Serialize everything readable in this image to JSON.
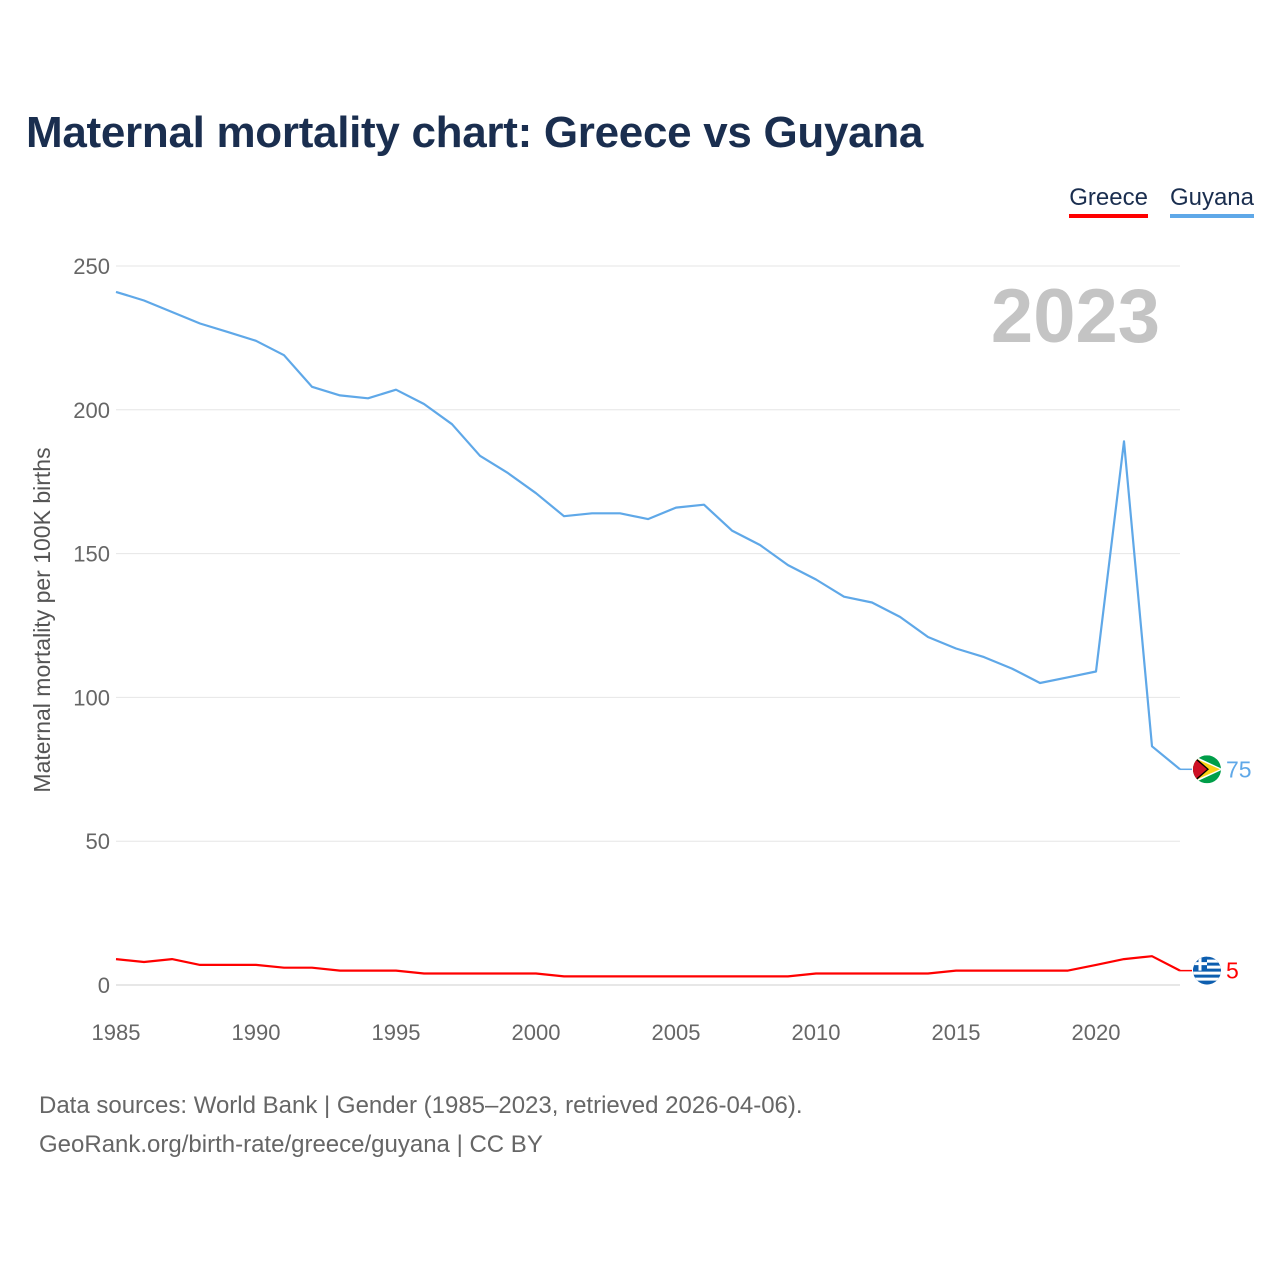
{
  "title": "Maternal mortality chart: Greece vs Guyana",
  "legend": [
    {
      "name": "Greece",
      "color": "#ff0000"
    },
    {
      "name": "Guyana",
      "color": "#5fa8e8"
    }
  ],
  "year_watermark": "2023",
  "footer": {
    "line1": "Data sources: World Bank | Gender (1985–2023, retrieved 2026-04-06).",
    "line2": "GeoRank.org/birth-rate/greece/guyana | CC BY"
  },
  "chart_data": {
    "type": "line",
    "title": "Maternal mortality chart: Greece vs Guyana",
    "xlabel": "",
    "ylabel": "Maternal mortality per 100K births",
    "xlim": [
      1985,
      2023
    ],
    "ylim": [
      0,
      250
    ],
    "xticks": [
      1985,
      1990,
      1995,
      2000,
      2005,
      2010,
      2015,
      2020
    ],
    "yticks": [
      0,
      50,
      100,
      150,
      200,
      250
    ],
    "grid": true,
    "legend_position": "top-right",
    "x": [
      1985,
      1986,
      1987,
      1988,
      1989,
      1990,
      1991,
      1992,
      1993,
      1994,
      1995,
      1996,
      1997,
      1998,
      1999,
      2000,
      2001,
      2002,
      2003,
      2004,
      2005,
      2006,
      2007,
      2008,
      2009,
      2010,
      2011,
      2012,
      2013,
      2014,
      2015,
      2016,
      2017,
      2018,
      2019,
      2020,
      2021,
      2022,
      2023
    ],
    "series": [
      {
        "name": "Guyana",
        "color": "#5fa8e8",
        "end_label": "75",
        "values": [
          241,
          238,
          234,
          230,
          227,
          224,
          219,
          208,
          205,
          204,
          207,
          202,
          195,
          184,
          178,
          171,
          163,
          164,
          164,
          162,
          166,
          167,
          158,
          153,
          146,
          141,
          135,
          133,
          128,
          121,
          117,
          114,
          110,
          105,
          107,
          109,
          189,
          83,
          75
        ]
      },
      {
        "name": "Greece",
        "color": "#ff0000",
        "end_label": "5",
        "values": [
          9,
          8,
          9,
          7,
          7,
          7,
          6,
          6,
          5,
          5,
          5,
          4,
          4,
          4,
          4,
          4,
          3,
          3,
          3,
          3,
          3,
          3,
          3,
          3,
          3,
          4,
          4,
          4,
          4,
          4,
          5,
          5,
          5,
          5,
          5,
          7,
          9,
          10,
          5
        ]
      }
    ]
  }
}
